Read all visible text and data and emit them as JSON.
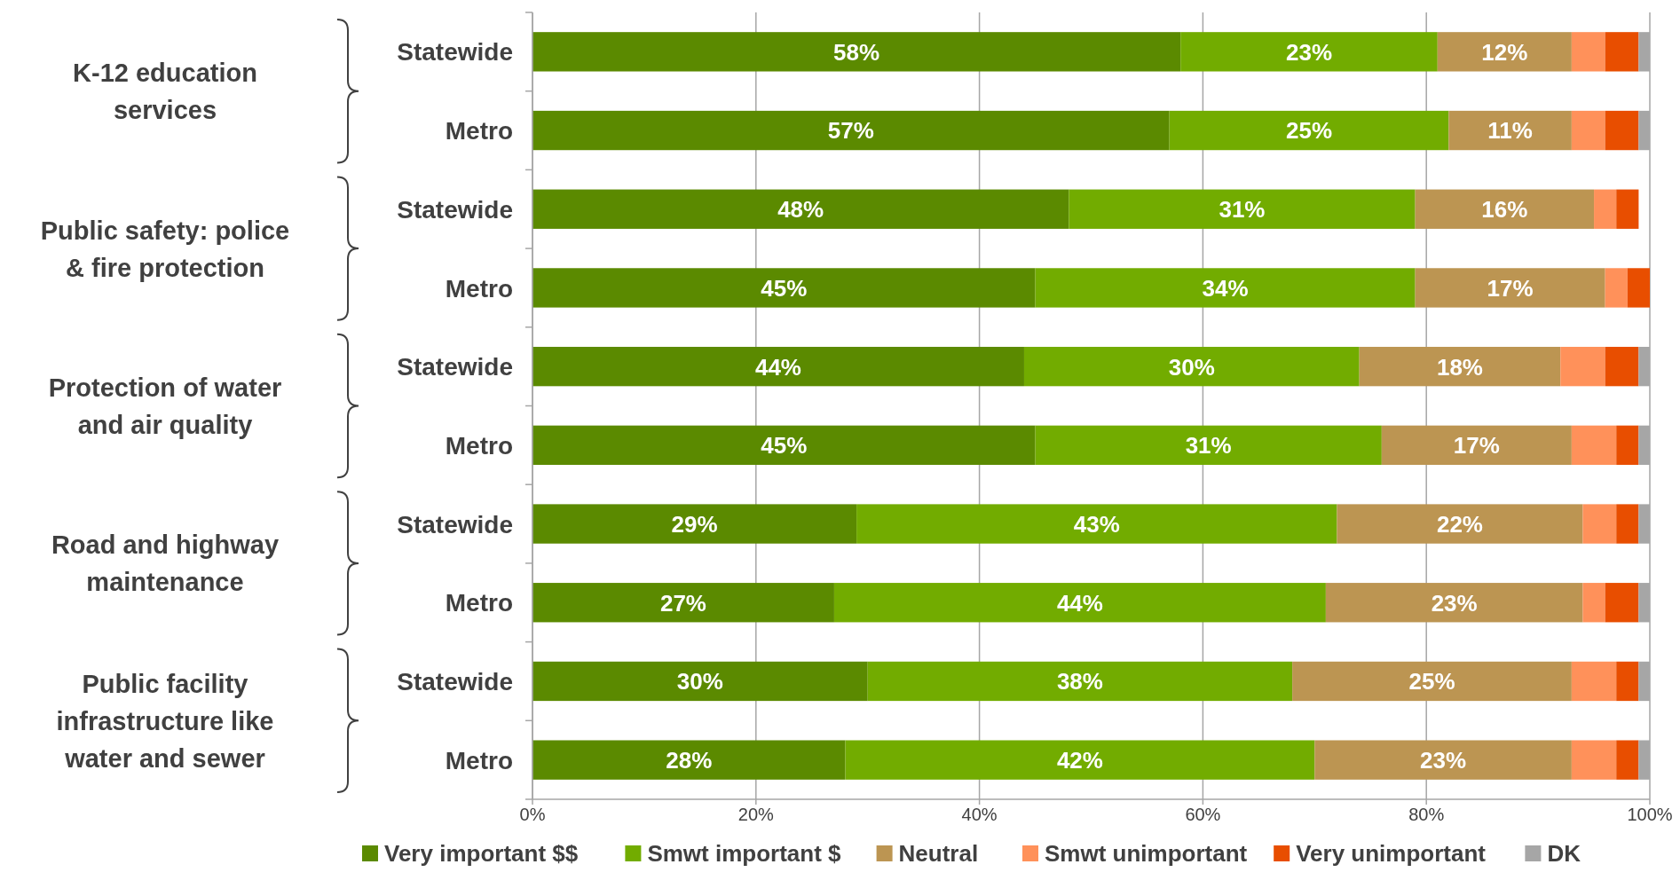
{
  "chart_data": {
    "type": "bar",
    "orientation": "horizontal",
    "stacked": true,
    "grid": "x",
    "legend": "bottom",
    "categories": [
      "Statewide",
      "Metro",
      "Statewide",
      "Metro",
      "Statewide",
      "Metro",
      "Statewide",
      "Metro",
      "Statewide",
      "Metro"
    ],
    "annotations": [
      "K-12 education services",
      "Public safety: police & fire protection",
      "Protection of water and air quality",
      "Road and highway maintenance",
      "Public facility infrastructure like water and sewer"
    ],
    "xlim": [
      0,
      100
    ],
    "xticks": [
      {
        "value": 0,
        "label": "0%"
      },
      {
        "value": 20,
        "label": "20%"
      },
      {
        "value": 40,
        "label": "40%"
      },
      {
        "value": 60,
        "label": "60%"
      },
      {
        "value": 80,
        "label": "80%"
      },
      {
        "value": 100,
        "label": "100%"
      }
    ],
    "series": [
      {
        "name": "Very important $$",
        "color": "#5b8a00",
        "values": [
          58,
          57,
          48,
          45,
          44,
          45,
          29,
          27,
          30,
          28
        ],
        "value_labels": [
          "58%",
          "57%",
          "48%",
          "45%",
          "44%",
          "45%",
          "29%",
          "27%",
          "30%",
          "28%"
        ]
      },
      {
        "name": "Smwt important $",
        "color": "#72ac00",
        "values": [
          23,
          25,
          31,
          34,
          30,
          31,
          43,
          44,
          38,
          42
        ],
        "value_labels": [
          "23%",
          "25%",
          "31%",
          "34%",
          "30%",
          "31%",
          "43%",
          "44%",
          "38%",
          "42%"
        ]
      },
      {
        "name": "Neutral",
        "color": "#bc9552",
        "values": [
          12,
          11,
          16,
          17,
          18,
          17,
          22,
          23,
          25,
          23
        ],
        "value_labels": [
          "12%",
          "11%",
          "16%",
          "17%",
          "18%",
          "17%",
          "22%",
          "23%",
          "25%",
          "23%"
        ]
      },
      {
        "name": "Smwt unimportant",
        "color": "#ff915a",
        "values": [
          3,
          3,
          2,
          2,
          4,
          4,
          3,
          2,
          4,
          4
        ]
      },
      {
        "name": "Very unimportant",
        "color": "#e84e00",
        "values": [
          3,
          3,
          2,
          2,
          3,
          2,
          2,
          3,
          2,
          2
        ]
      },
      {
        "name": "DK",
        "color": "#a6a6a6",
        "values": [
          1,
          1,
          0,
          0,
          1,
          1,
          1,
          1,
          1,
          1
        ]
      }
    ]
  }
}
